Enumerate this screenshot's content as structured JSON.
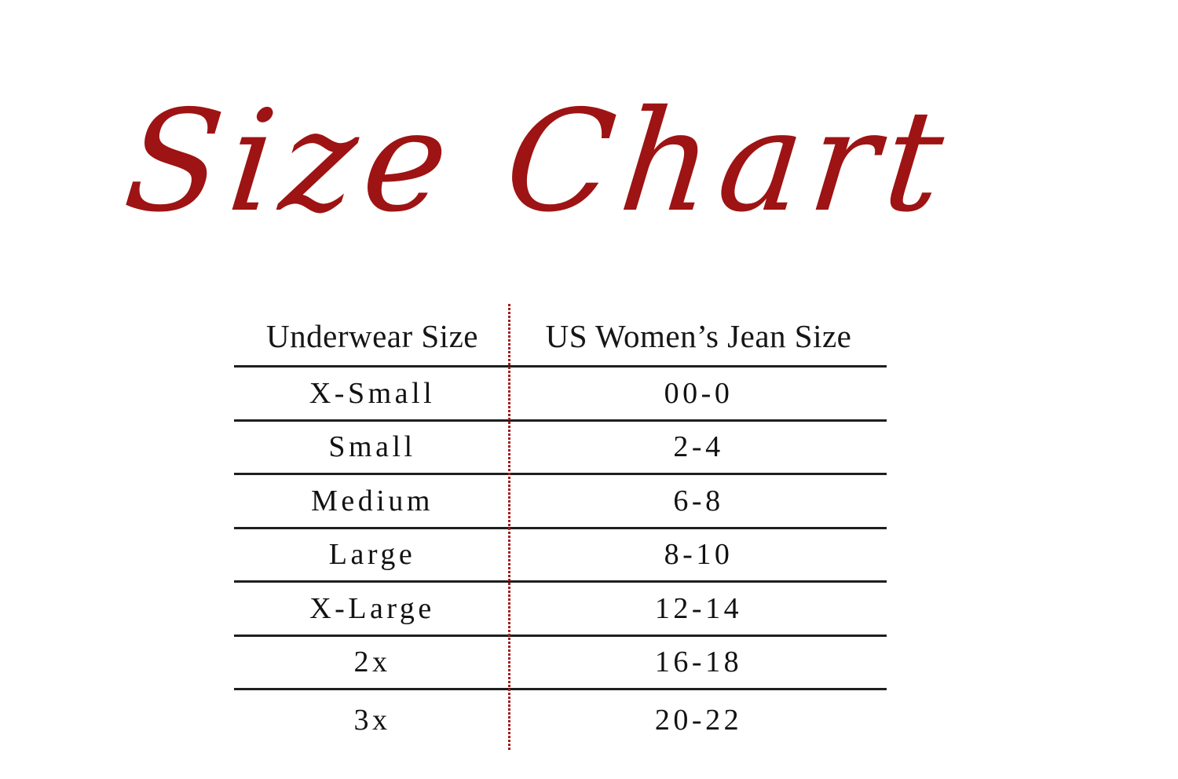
{
  "page": {
    "background_color": "#ffffff"
  },
  "title": {
    "text": "Size Chart",
    "color": "#9e1313"
  },
  "table": {
    "header": {
      "underwear": "Underwear Size",
      "jeans": "US Women’s Jean Size"
    },
    "rows": [
      {
        "underwear": "X-Small",
        "jeans": "00-0"
      },
      {
        "underwear": "Small",
        "jeans": "2-4"
      },
      {
        "underwear": "Medium",
        "jeans": "6-8"
      },
      {
        "underwear": "Large",
        "jeans": "8-10"
      },
      {
        "underwear": "X-Large",
        "jeans": "12-14"
      },
      {
        "underwear": "2x",
        "jeans": "16-18"
      },
      {
        "underwear": "3x",
        "jeans": "20-22"
      }
    ],
    "row_line_color": "#1f1f1f",
    "divider_color": "#a51d1d",
    "text_color": "#121212"
  },
  "chart_data": {
    "type": "table",
    "title": "Size Chart",
    "columns": [
      "Underwear Size",
      "US Women’s Jean Size"
    ],
    "rows": [
      [
        "X-Small",
        "00-0"
      ],
      [
        "Small",
        "2-4"
      ],
      [
        "Medium",
        "6-8"
      ],
      [
        "Large",
        "8-10"
      ],
      [
        "X-Large",
        "12-14"
      ],
      [
        "2x",
        "16-18"
      ],
      [
        "3x",
        "20-22"
      ]
    ],
    "layout": {
      "grid": "horizontal rules between rows, no outer border, red dotted vertical divider between the two columns",
      "header_position": "top row, above first rule"
    }
  }
}
